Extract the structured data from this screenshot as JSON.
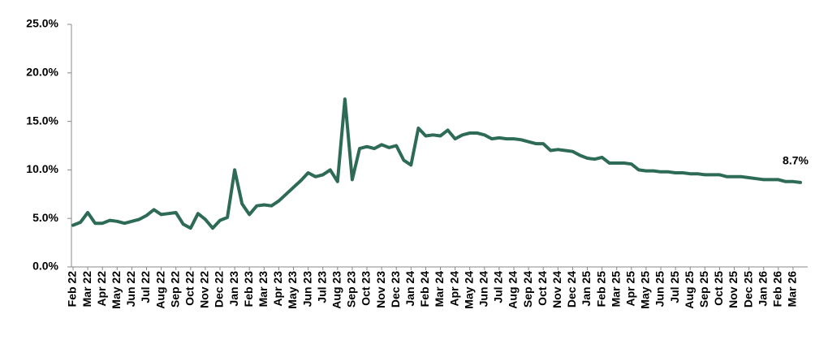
{
  "chart_data": {
    "type": "line",
    "categories": [
      "Feb 22",
      null,
      "Mar 22",
      null,
      "Apr 22",
      null,
      "May 22",
      null,
      "Jun 22",
      null,
      "Jul 22",
      null,
      "Aug 22",
      null,
      "Sep 22",
      null,
      "Oct 22",
      null,
      "Nov 22",
      null,
      "Dec 22",
      null,
      "Jan 23",
      null,
      "Feb 23",
      null,
      "Mar 23",
      null,
      "Apr 23",
      null,
      "May 23",
      null,
      "Jun 23",
      null,
      "Jul 23",
      null,
      "Aug 23",
      null,
      "Sep 23",
      null,
      "Oct 23",
      null,
      "Nov 23",
      null,
      "Dec 23",
      null,
      "Jan 24",
      null,
      "Feb 24",
      null,
      "Mar 24",
      null,
      "Apr 24",
      null,
      "May 24",
      null,
      "Jun 24",
      null,
      "Jul 24",
      null,
      "Aug 24",
      null,
      "Sep 24",
      null,
      "Oct 24",
      null,
      "Nov 24",
      null,
      "Dec 24",
      null,
      "Jan 25",
      null,
      "Feb 25",
      null,
      "Mar 25",
      null,
      "Apr 25",
      null,
      "May 25",
      null,
      "Jun 25",
      null,
      "Jul 25",
      null,
      "Aug 25",
      null,
      "Sep 25",
      null,
      "Oct 25",
      null,
      "Nov 25",
      null,
      "Dec 25",
      null,
      "Jan 26",
      null,
      "Feb 26",
      null,
      "Mar 26",
      null
    ],
    "values": [
      4.3,
      4.6,
      5.6,
      4.5,
      4.5,
      4.8,
      4.7,
      4.5,
      4.7,
      4.9,
      5.3,
      5.9,
      5.4,
      5.5,
      5.6,
      4.4,
      4.0,
      5.5,
      4.9,
      4.0,
      4.8,
      5.1,
      10.0,
      6.5,
      5.4,
      6.3,
      6.4,
      6.3,
      6.8,
      7.5,
      8.2,
      8.9,
      9.7,
      9.3,
      9.5,
      10.0,
      8.8,
      17.3,
      9.0,
      12.2,
      12.4,
      12.2,
      12.6,
      12.3,
      12.5,
      11.0,
      10.5,
      14.3,
      13.5,
      13.6,
      13.5,
      14.1,
      13.2,
      13.6,
      13.8,
      13.8,
      13.6,
      13.2,
      13.3,
      13.2,
      13.2,
      13.1,
      12.9,
      12.7,
      12.7,
      12.0,
      12.1,
      12.0,
      11.9,
      11.5,
      11.2,
      11.1,
      11.3,
      10.7,
      10.7,
      10.7,
      10.6,
      10.0,
      9.9,
      9.9,
      9.8,
      9.8,
      9.7,
      9.7,
      9.6,
      9.6,
      9.5,
      9.5,
      9.5,
      9.3,
      9.3,
      9.3,
      9.2,
      9.1,
      9.0,
      9.0,
      9.0,
      8.8,
      8.8,
      8.7
    ],
    "value_labels": [
      null,
      null,
      null,
      null,
      null,
      null,
      null,
      null,
      null,
      null,
      null,
      null,
      null,
      null,
      null,
      null,
      null,
      null,
      null,
      null,
      null,
      null,
      null,
      null,
      null,
      null,
      null,
      null,
      null,
      null,
      null,
      null,
      null,
      null,
      null,
      null,
      null,
      null,
      null,
      null,
      null,
      null,
      null,
      null,
      null,
      null,
      null,
      null,
      null,
      null,
      null,
      null,
      null,
      null,
      null,
      null,
      null,
      null,
      null,
      null,
      null,
      null,
      null,
      null,
      null,
      null,
      null,
      null,
      null,
      null,
      null,
      null,
      null,
      null,
      null,
      null,
      null,
      null,
      null,
      null,
      null,
      null,
      null,
      null,
      null,
      null,
      null,
      null,
      null,
      null,
      null,
      null,
      null,
      null,
      null,
      null,
      null,
      null,
      null,
      "8.7%"
    ],
    "color": "#2e6b57",
    "ylim": [
      0,
      25
    ],
    "yticks": [
      {
        "value": 0,
        "label": "0.0%"
      },
      {
        "value": 5,
        "label": "5.0%"
      },
      {
        "value": 10,
        "label": "10.0%"
      },
      {
        "value": 15,
        "label": "15.0%"
      },
      {
        "value": 20,
        "label": "20.0%"
      },
      {
        "value": 25,
        "label": "25.0%"
      }
    ]
  }
}
